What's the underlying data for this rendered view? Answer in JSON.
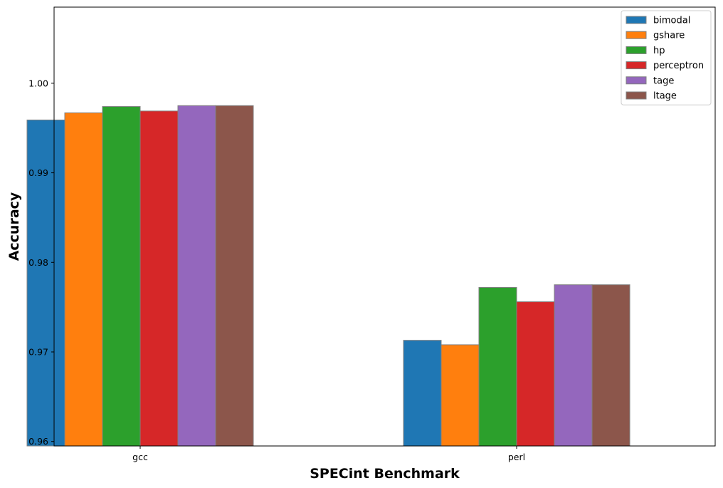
{
  "chart_data": {
    "type": "bar",
    "title": "",
    "xlabel": "SPECint Benchmark",
    "ylabel": "Accuracy",
    "categories": [
      "gcc",
      "perl"
    ],
    "ylim": [
      0.9595,
      1.0085
    ],
    "yticks": [
      0.96,
      0.97,
      0.98,
      0.99,
      1.0
    ],
    "ytick_labels": [
      "0.96",
      "0.97",
      "0.98",
      "0.99",
      "1.00"
    ],
    "grid": false,
    "legend_position": "top-right",
    "series": [
      {
        "name": "bimodal",
        "color": "#1f77b4",
        "values": [
          0.9959,
          0.9713
        ]
      },
      {
        "name": "gshare",
        "color": "#ff7f0e",
        "values": [
          0.9967,
          0.9708
        ]
      },
      {
        "name": "hp",
        "color": "#2ca02c",
        "values": [
          0.9974,
          0.9772
        ]
      },
      {
        "name": "perceptron",
        "color": "#d62728",
        "values": [
          0.9969,
          0.9756
        ]
      },
      {
        "name": "tage",
        "color": "#9467bd",
        "values": [
          0.9975,
          0.9775
        ]
      },
      {
        "name": "ltage",
        "color": "#8c564b",
        "values": [
          0.9975,
          0.9775
        ]
      }
    ]
  }
}
